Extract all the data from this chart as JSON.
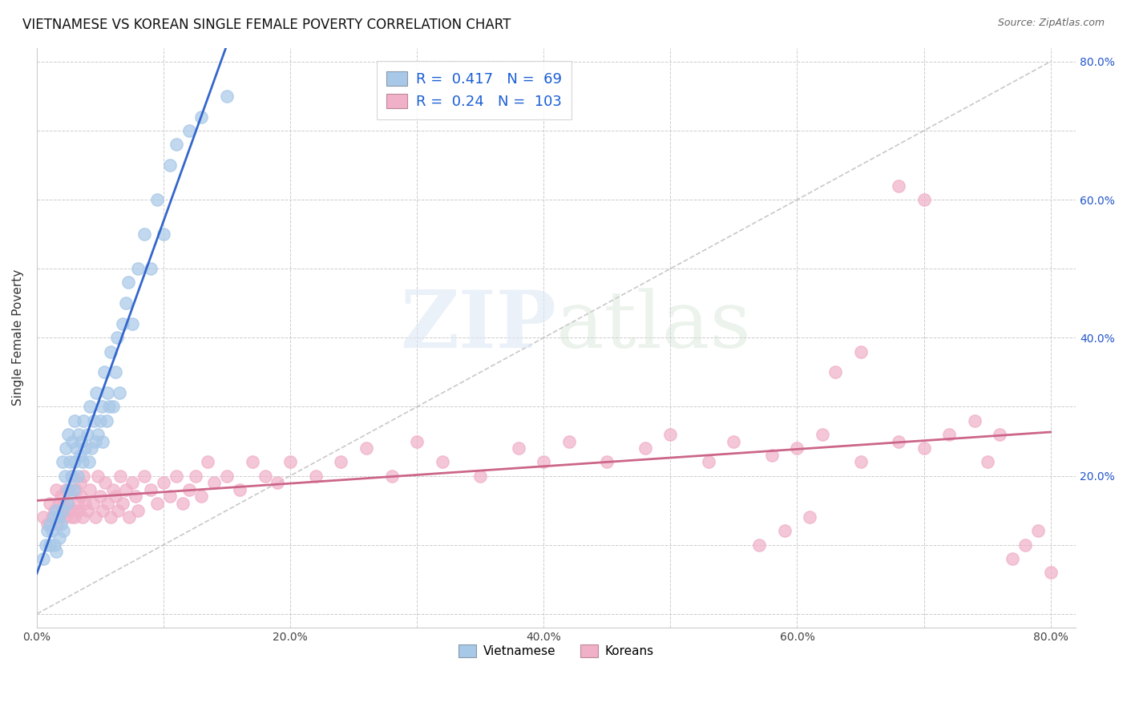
{
  "title": "VIETNAMESE VS KOREAN SINGLE FEMALE POVERTY CORRELATION CHART",
  "source": "Source: ZipAtlas.com",
  "ylabel": "Single Female Poverty",
  "xlim": [
    0.0,
    0.82
  ],
  "ylim": [
    -0.02,
    0.82
  ],
  "viet_color": "#a8c8e8",
  "korean_color": "#f0b0c8",
  "viet_line_color": "#3366cc",
  "korean_line_color": "#cc6688",
  "viet_R": 0.417,
  "viet_N": 69,
  "korean_R": 0.24,
  "korean_N": 103,
  "legend_label_viet": "Vietnamese",
  "legend_label_korean": "Koreans",
  "background_color": "#ffffff",
  "grid_color": "#cccccc",
  "viet_x": [
    0.005,
    0.007,
    0.008,
    0.01,
    0.01,
    0.012,
    0.013,
    0.014,
    0.015,
    0.015,
    0.017,
    0.018,
    0.019,
    0.02,
    0.02,
    0.021,
    0.022,
    0.023,
    0.024,
    0.025,
    0.025,
    0.026,
    0.027,
    0.028,
    0.029,
    0.03,
    0.03,
    0.031,
    0.032,
    0.033,
    0.034,
    0.035,
    0.036,
    0.037,
    0.038,
    0.04,
    0.041,
    0.042,
    0.043,
    0.045,
    0.046,
    0.047,
    0.048,
    0.05,
    0.051,
    0.052,
    0.053,
    0.055,
    0.056,
    0.057,
    0.058,
    0.06,
    0.062,
    0.063,
    0.065,
    0.068,
    0.07,
    0.072,
    0.075,
    0.08,
    0.085,
    0.09,
    0.095,
    0.1,
    0.105,
    0.11,
    0.12,
    0.13,
    0.15
  ],
  "viet_y": [
    0.08,
    0.1,
    0.12,
    0.1,
    0.13,
    0.12,
    0.14,
    0.1,
    0.15,
    0.09,
    0.14,
    0.11,
    0.13,
    0.15,
    0.22,
    0.12,
    0.2,
    0.24,
    0.16,
    0.18,
    0.26,
    0.22,
    0.2,
    0.25,
    0.18,
    0.22,
    0.28,
    0.24,
    0.2,
    0.26,
    0.23,
    0.25,
    0.22,
    0.28,
    0.24,
    0.26,
    0.22,
    0.3,
    0.24,
    0.28,
    0.25,
    0.32,
    0.26,
    0.28,
    0.3,
    0.25,
    0.35,
    0.28,
    0.32,
    0.3,
    0.38,
    0.3,
    0.35,
    0.4,
    0.32,
    0.42,
    0.45,
    0.48,
    0.42,
    0.5,
    0.55,
    0.5,
    0.6,
    0.55,
    0.65,
    0.68,
    0.7,
    0.72,
    0.75
  ],
  "korean_x": [
    0.005,
    0.008,
    0.01,
    0.012,
    0.014,
    0.015,
    0.016,
    0.017,
    0.018,
    0.019,
    0.02,
    0.021,
    0.022,
    0.023,
    0.024,
    0.025,
    0.026,
    0.027,
    0.028,
    0.029,
    0.03,
    0.031,
    0.032,
    0.033,
    0.034,
    0.035,
    0.036,
    0.037,
    0.038,
    0.04,
    0.042,
    0.044,
    0.046,
    0.048,
    0.05,
    0.052,
    0.054,
    0.056,
    0.058,
    0.06,
    0.062,
    0.064,
    0.066,
    0.068,
    0.07,
    0.073,
    0.075,
    0.078,
    0.08,
    0.085,
    0.09,
    0.095,
    0.1,
    0.105,
    0.11,
    0.115,
    0.12,
    0.125,
    0.13,
    0.135,
    0.14,
    0.15,
    0.16,
    0.17,
    0.18,
    0.19,
    0.2,
    0.22,
    0.24,
    0.26,
    0.28,
    0.3,
    0.32,
    0.35,
    0.38,
    0.4,
    0.42,
    0.45,
    0.48,
    0.5,
    0.53,
    0.55,
    0.58,
    0.6,
    0.62,
    0.65,
    0.68,
    0.7,
    0.72,
    0.74,
    0.75,
    0.76,
    0.77,
    0.78,
    0.79,
    0.8,
    0.7,
    0.68,
    0.65,
    0.63,
    0.61,
    0.59,
    0.57
  ],
  "korean_y": [
    0.14,
    0.13,
    0.16,
    0.14,
    0.15,
    0.18,
    0.13,
    0.16,
    0.14,
    0.17,
    0.15,
    0.16,
    0.14,
    0.18,
    0.15,
    0.16,
    0.18,
    0.14,
    0.2,
    0.15,
    0.14,
    0.18,
    0.16,
    0.15,
    0.19,
    0.17,
    0.14,
    0.2,
    0.16,
    0.15,
    0.18,
    0.16,
    0.14,
    0.2,
    0.17,
    0.15,
    0.19,
    0.16,
    0.14,
    0.18,
    0.17,
    0.15,
    0.2,
    0.16,
    0.18,
    0.14,
    0.19,
    0.17,
    0.15,
    0.2,
    0.18,
    0.16,
    0.19,
    0.17,
    0.2,
    0.16,
    0.18,
    0.2,
    0.17,
    0.22,
    0.19,
    0.2,
    0.18,
    0.22,
    0.2,
    0.19,
    0.22,
    0.2,
    0.22,
    0.24,
    0.2,
    0.25,
    0.22,
    0.2,
    0.24,
    0.22,
    0.25,
    0.22,
    0.24,
    0.26,
    0.22,
    0.25,
    0.23,
    0.24,
    0.26,
    0.22,
    0.25,
    0.24,
    0.26,
    0.28,
    0.22,
    0.26,
    0.08,
    0.1,
    0.12,
    0.06,
    0.6,
    0.62,
    0.38,
    0.35,
    0.14,
    0.12,
    0.1
  ]
}
